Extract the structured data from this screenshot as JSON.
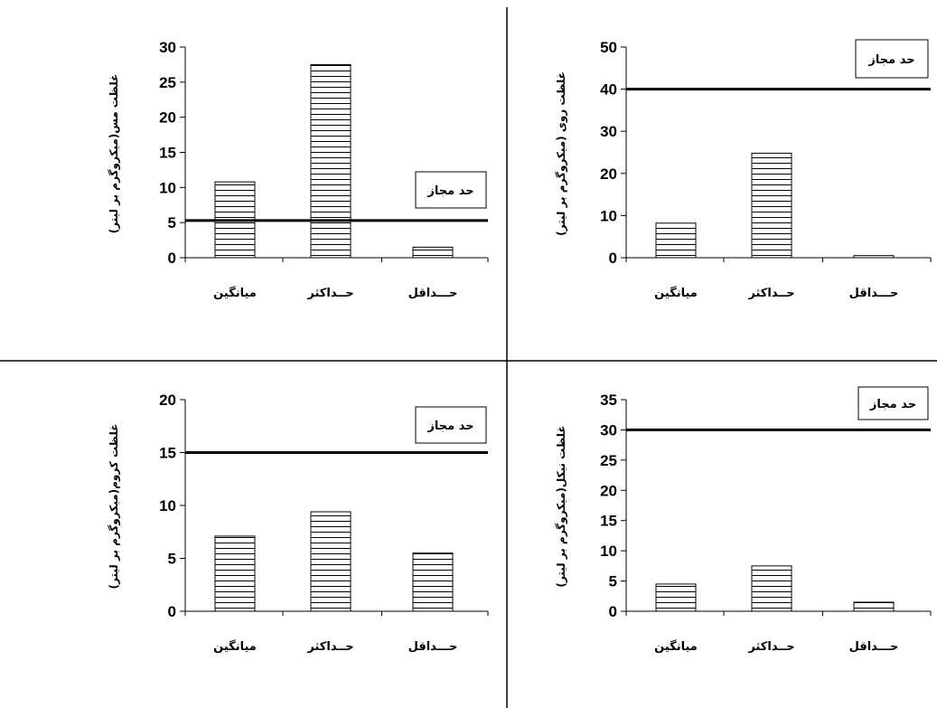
{
  "chart_data": [
    {
      "type": "bar",
      "categories": [
        "میانگین",
        "حــداکثر",
        "حـــداقل"
      ],
      "values": [
        10.8,
        27.5,
        1.5
      ],
      "ylabel": "غلظت مس(میکروگرم بر لیتر)",
      "ylim": [
        0,
        30
      ],
      "yticks": [
        0,
        5,
        10,
        15,
        20,
        25,
        30
      ],
      "limit_line": 5.3,
      "limit_label": "حد مجاز",
      "legend_position": "middle-right",
      "bar_pattern": "horizontal-hatch",
      "grid": false
    },
    {
      "type": "bar",
      "categories": [
        "میانگین",
        "حــداکثر",
        "حـــداقل"
      ],
      "values": [
        8.2,
        24.8,
        0.5
      ],
      "ylabel": "غلظت روی (میکروگرم بر لیتر)",
      "ylim": [
        0,
        50
      ],
      "yticks": [
        0,
        10,
        20,
        30,
        40,
        50
      ],
      "limit_line": 40,
      "limit_label": "حد مجاز",
      "legend_position": "top-right",
      "bar_pattern": "horizontal-hatch",
      "grid": false
    },
    {
      "type": "bar",
      "categories": [
        "میانگین",
        "حــداکثر",
        "حـــداقل"
      ],
      "values": [
        7.1,
        9.4,
        5.5
      ],
      "ylabel": "غلظت کروم(میکروگرم بر لیتر)",
      "ylim": [
        0,
        20
      ],
      "yticks": [
        0,
        5,
        10,
        15,
        20
      ],
      "limit_line": 15,
      "limit_label": "حد مجاز",
      "legend_position": "top-right",
      "bar_pattern": "horizontal-hatch",
      "grid": false
    },
    {
      "type": "bar",
      "categories": [
        "میانگین",
        "حــداکثر",
        "حـــداقل"
      ],
      "values": [
        4.5,
        7.5,
        1.5
      ],
      "ylabel": "غلظت نیکل(میکروگرم بر لیتر)",
      "ylim": [
        0,
        35
      ],
      "yticks": [
        0,
        5,
        10,
        15,
        20,
        25,
        30,
        35
      ],
      "limit_line": 30,
      "limit_label": "حد مجاز",
      "legend_position": "top-right",
      "bar_pattern": "horizontal-hatch",
      "grid": false
    }
  ]
}
